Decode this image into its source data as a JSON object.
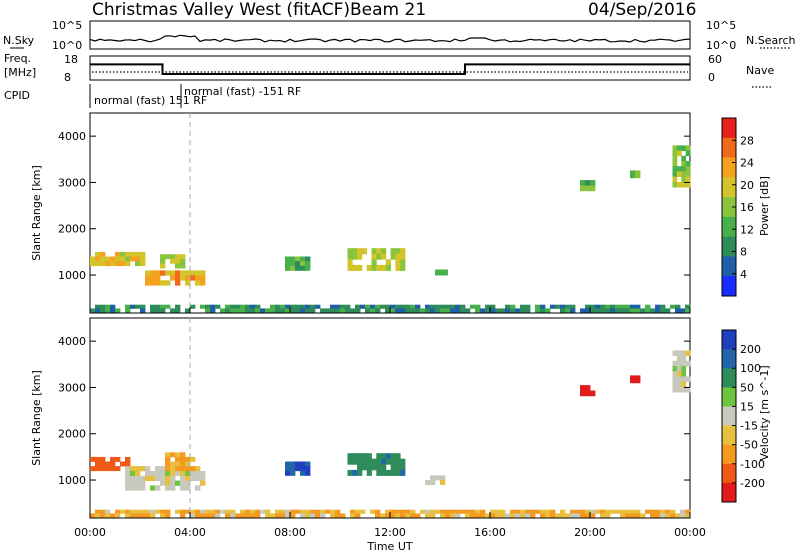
{
  "header": {
    "station": "Christmas Valley West (fitACF)",
    "beam": "Beam 21",
    "date": "04/Sep/2016"
  },
  "strip": {
    "nsky_label": "N.Sky",
    "nsearch_label": "N.Search",
    "freq_label_top": "Freq.",
    "freq_label_unit": "[MHz]",
    "nave_label": "Nave",
    "cpid_label": "CPID",
    "left_ticks_top": [
      "10^5",
      "10^0"
    ],
    "right_ticks_top": [
      "10^5",
      "10^0"
    ],
    "left_ticks_freq": [
      "18",
      "8"
    ],
    "right_ticks_nave": [
      "60",
      "0"
    ],
    "cpid_entries": [
      "normal (fast) 151 RF",
      "normal (fast) -151 RF"
    ]
  },
  "axes": {
    "x_label": "Time UT",
    "x_ticks": [
      "00:00",
      "04:00",
      "08:00",
      "12:00",
      "16:00",
      "20:00",
      "00:00"
    ],
    "y_label_top": "Slant Range [km]",
    "y_label_bottom": "Slant Range [km]",
    "y_ticks": [
      "1000",
      "2000",
      "3000",
      "4000"
    ]
  },
  "colorbars": {
    "power_label": "Power [dB]",
    "power_ticks": [
      "4",
      "8",
      "12",
      "16",
      "20",
      "24",
      "28"
    ],
    "power_colors": [
      "#1a2cff",
      "#1f5fa8",
      "#2e8c5a",
      "#47b04a",
      "#8ac43c",
      "#d4c42c",
      "#f4a11e",
      "#f06a1a",
      "#e6201a"
    ],
    "velocity_label": "Velocity [m s^-1]",
    "velocity_ticks": [
      "200",
      "100",
      "50",
      "15",
      "-15",
      "-50",
      "-100",
      "-200"
    ],
    "velocity_colors": [
      "#1f3fbf",
      "#2166a8",
      "#2e8c5a",
      "#6cc53c",
      "#c8c8bc",
      "#e8c040",
      "#f49a20",
      "#f05a18",
      "#e21a1a"
    ]
  },
  "chart_data": {
    "type": "heatmap",
    "x_range_hours": [
      0,
      24
    ],
    "y_range_km": [
      180,
      4500
    ],
    "marker_hour": 4.0,
    "freq_mhz_segments": [
      {
        "from_h": 0.0,
        "to_h": 2.9,
        "freq": 14.5
      },
      {
        "from_h": 2.9,
        "to_h": 15.0,
        "freq": 10.5
      },
      {
        "from_h": 15.0,
        "to_h": 24.0,
        "freq": 14.5
      }
    ],
    "power_regions": [
      {
        "t0": 0.0,
        "t1": 2.2,
        "r0": 1200,
        "r1": 1500,
        "level": 20
      },
      {
        "t0": 2.2,
        "t1": 4.6,
        "r0": 780,
        "r1": 1100,
        "level": 24
      },
      {
        "t0": 2.8,
        "t1": 3.8,
        "r0": 1150,
        "r1": 1450,
        "level": 18
      },
      {
        "t0": 7.8,
        "t1": 8.8,
        "r0": 1100,
        "r1": 1400,
        "level": 12
      },
      {
        "t0": 10.3,
        "t1": 12.6,
        "r0": 1100,
        "r1": 1580,
        "level": 18
      },
      {
        "t0": 13.8,
        "t1": 14.3,
        "r0": 1000,
        "r1": 1120,
        "level": 10
      },
      {
        "t0": 19.6,
        "t1": 20.2,
        "r0": 2820,
        "r1": 3050,
        "level": 12
      },
      {
        "t0": 21.6,
        "t1": 22.0,
        "r0": 3100,
        "r1": 3260,
        "level": 14
      },
      {
        "t0": 23.3,
        "t1": 24.0,
        "r0": 2900,
        "r1": 3800,
        "level": 16
      },
      {
        "t0": 0.0,
        "t1": 24.0,
        "r0": 200,
        "r1": 360,
        "level": 8
      }
    ],
    "velocity_regions": [
      {
        "t0": 0.0,
        "t1": 1.6,
        "r0": 1200,
        "r1": 1500,
        "vel": -100
      },
      {
        "t0": 1.4,
        "t1": 4.6,
        "r0": 780,
        "r1": 1300,
        "vel": 0
      },
      {
        "t0": 3.0,
        "t1": 4.2,
        "r0": 1200,
        "r1": 1600,
        "vel": -40
      },
      {
        "t0": 7.8,
        "t1": 8.8,
        "r0": 1100,
        "r1": 1400,
        "vel": 150
      },
      {
        "t0": 10.3,
        "t1": 12.6,
        "r0": 1100,
        "r1": 1580,
        "vel": 60
      },
      {
        "t0": 13.4,
        "t1": 14.2,
        "r0": 900,
        "r1": 1100,
        "vel": 0
      },
      {
        "t0": 19.6,
        "t1": 20.2,
        "r0": 2820,
        "r1": 3050,
        "vel": -200
      },
      {
        "t0": 21.6,
        "t1": 22.0,
        "r0": 3100,
        "r1": 3260,
        "vel": -200
      },
      {
        "t0": 23.3,
        "t1": 24.0,
        "r0": 2900,
        "r1": 3800,
        "vel": 0
      },
      {
        "t0": 0.0,
        "t1": 24.0,
        "r0": 200,
        "r1": 360,
        "vel": -30
      }
    ]
  }
}
